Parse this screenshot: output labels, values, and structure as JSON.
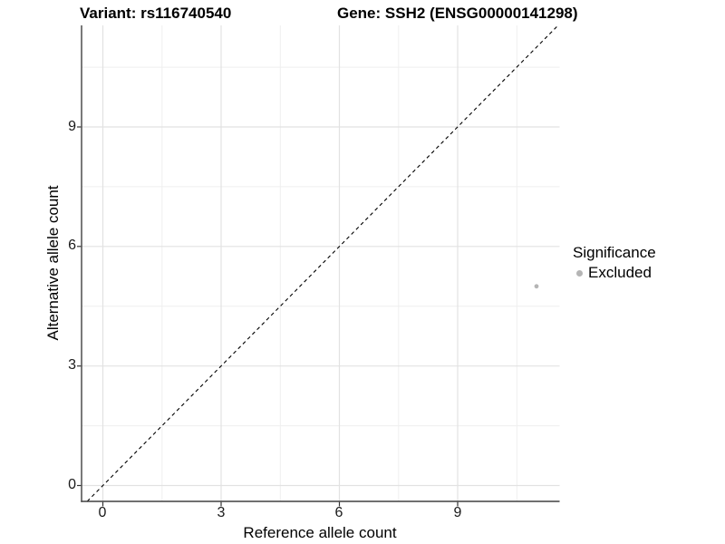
{
  "chart_data": {
    "type": "scatter",
    "title_left": "Variant: rs116740540",
    "title_right": "Gene: SSH2 (ENSG00000141298)",
    "xlabel": "Reference allele count",
    "ylabel": "Alternative allele count",
    "x_ticks": [
      "0",
      "3",
      "6",
      "9"
    ],
    "y_ticks": [
      "0",
      "3",
      "6",
      "9"
    ],
    "xlim": [
      -0.55,
      11.6
    ],
    "ylim": [
      -0.4,
      11.55
    ],
    "grid": {
      "major_every": 3,
      "minor_every": 1.5,
      "major_color": "#e2e2e2",
      "minor_color": "#efefef"
    },
    "series": [
      {
        "name": "Excluded",
        "color": "#b5b5b5",
        "points": [
          {
            "x": 11,
            "y": 5
          }
        ]
      }
    ],
    "annotations": [
      {
        "type": "identity-line",
        "slope": 1,
        "intercept": 0,
        "style": "dashed",
        "color": "#000000"
      }
    ],
    "legend": {
      "title": "Significance",
      "position": "right",
      "entries": [
        {
          "label": "Excluded",
          "color": "#b5b5b5"
        }
      ]
    }
  }
}
